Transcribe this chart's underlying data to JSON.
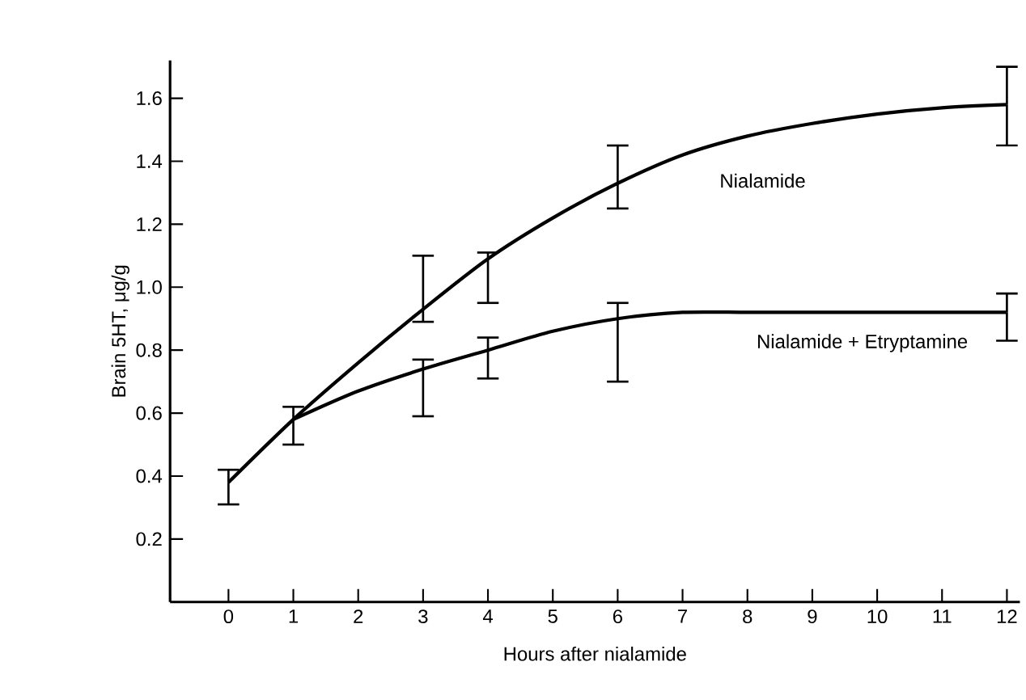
{
  "chart_data": {
    "type": "line",
    "xlabel": "Hours after nialamide",
    "ylabel": "Brain 5HT,  μg/g",
    "xlim": [
      -0.9,
      12.2
    ],
    "ylim": [
      0,
      1.72
    ],
    "xticks": [
      0,
      1,
      2,
      3,
      4,
      5,
      6,
      7,
      8,
      9,
      10,
      11,
      12
    ],
    "yticks": [
      {
        "value": 0.2,
        "label": "0.2"
      },
      {
        "value": 0.4,
        "label": "0.4"
      },
      {
        "value": 0.6,
        "label": "0.6"
      },
      {
        "value": 0.8,
        "label": "0.8"
      },
      {
        "value": 1,
        "label": "1.0"
      },
      {
        "value": 1.2,
        "label": "1.2"
      },
      {
        "value": 1.4,
        "label": "1.4"
      },
      {
        "value": 1.6,
        "label": "1.6"
      }
    ],
    "line_style": "solid",
    "series": [
      {
        "name": "Nialamide",
        "color": "#000000",
        "x": [
          0,
          1,
          2,
          3,
          4,
          5,
          6,
          7,
          8,
          9,
          10,
          11,
          12
        ],
        "values": [
          0.38,
          0.58,
          0.76,
          0.93,
          1.09,
          1.22,
          1.33,
          1.42,
          1.48,
          1.52,
          1.55,
          1.57,
          1.58
        ],
        "errors": [
          [
            0.31,
            0.42
          ],
          [
            0.5,
            0.62
          ],
          null,
          [
            0.89,
            1.1
          ],
          [
            0.95,
            1.11
          ],
          null,
          [
            1.25,
            1.45
          ],
          null,
          null,
          null,
          null,
          null,
          [
            1.45,
            1.7
          ]
        ]
      },
      {
        "name": "Nialamide + Etryptamine",
        "color": "#000000",
        "x": [
          1,
          2,
          3,
          4,
          5,
          6,
          7,
          8,
          9,
          10,
          11,
          12
        ],
        "values": [
          0.58,
          0.67,
          0.74,
          0.8,
          0.86,
          0.9,
          0.92,
          0.92,
          0.92,
          0.92,
          0.92,
          0.92
        ],
        "errors": [
          null,
          null,
          [
            0.59,
            0.77
          ],
          [
            0.71,
            0.84
          ],
          null,
          [
            0.7,
            0.95
          ],
          null,
          null,
          null,
          null,
          null,
          [
            0.83,
            0.98
          ]
        ]
      }
    ]
  }
}
